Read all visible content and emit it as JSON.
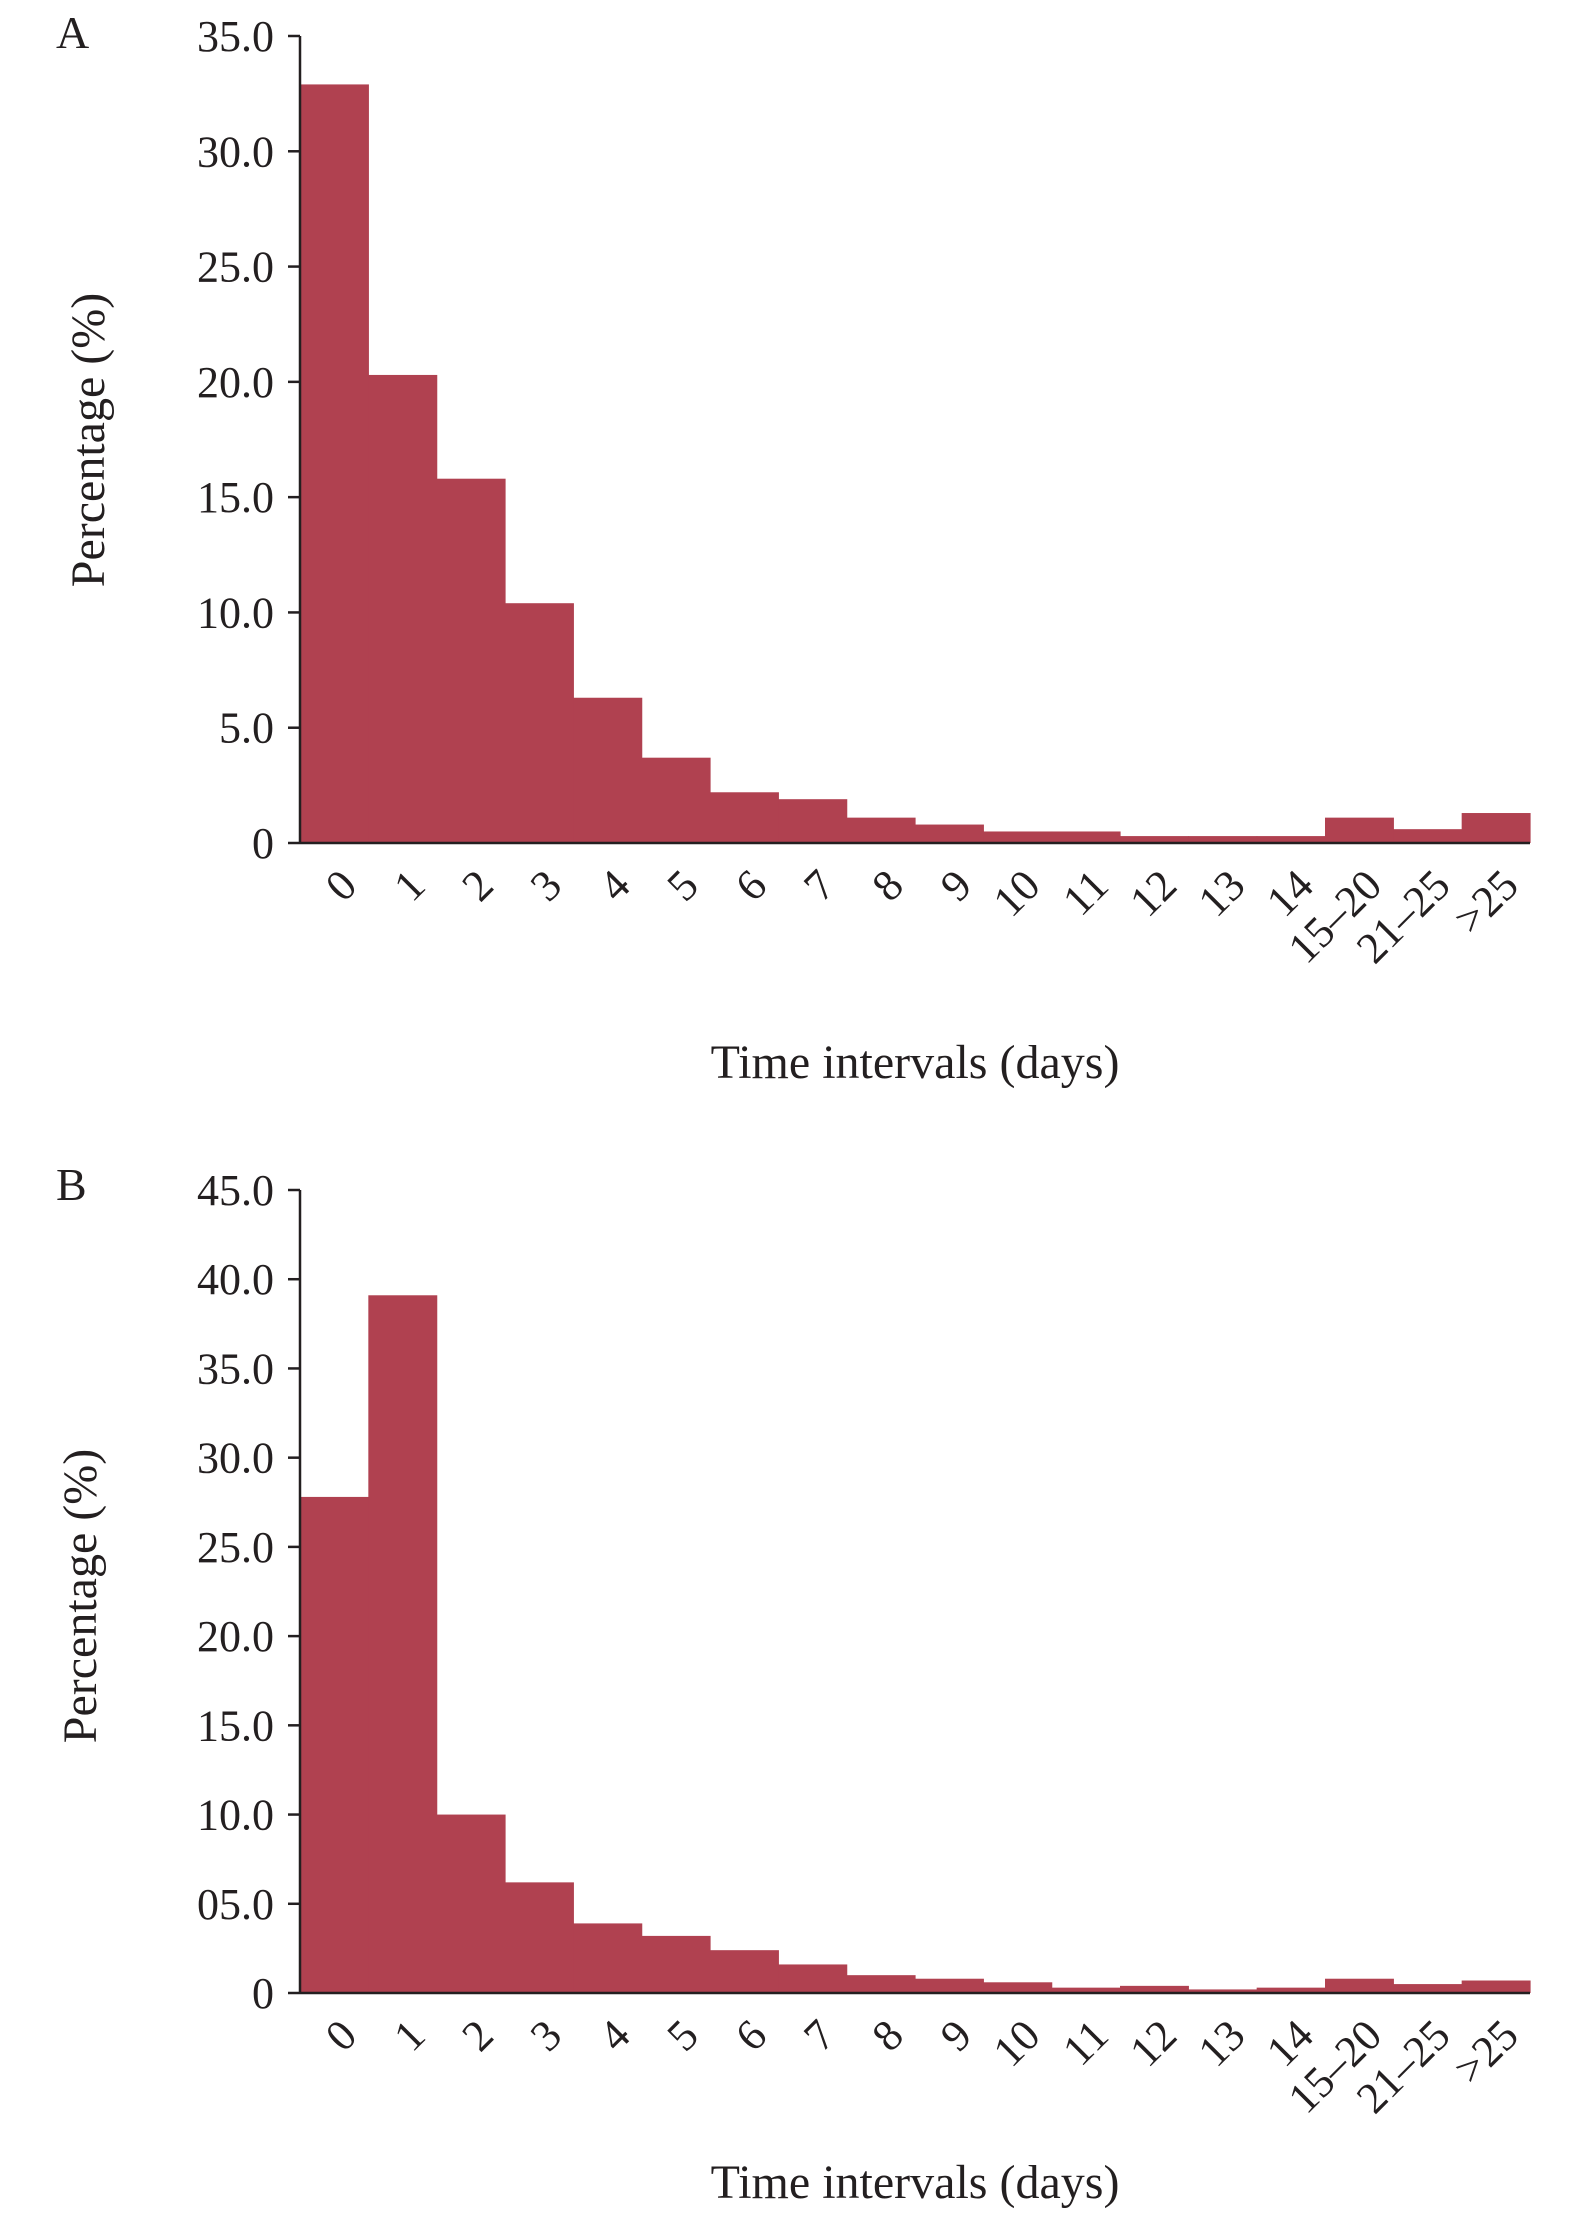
{
  "bar_color": "#b04150",
  "axis_color": "#231f20",
  "chart_data": [
    {
      "type": "bar",
      "panel_label": "A",
      "xlabel": "Time intervals (days)",
      "ylabel": "Percentage (%)",
      "ylim": [
        0,
        35
      ],
      "yticks": [
        0,
        5,
        10,
        15,
        20,
        25,
        30,
        35
      ],
      "ytick_labels": [
        "0",
        "5.0",
        "10.0",
        "15.0",
        "20.0",
        "25.0",
        "30.0",
        "35.0"
      ],
      "categories": [
        "0",
        "1",
        "2",
        "3",
        "4",
        "5",
        "6",
        "7",
        "8",
        "9",
        "10",
        "11",
        "12",
        "13",
        "14",
        "15–20",
        "21–25",
        ">25"
      ],
      "values": [
        32.9,
        20.3,
        15.8,
        10.4,
        6.3,
        3.7,
        2.2,
        1.9,
        1.1,
        0.8,
        0.5,
        0.5,
        0.3,
        0.3,
        0.3,
        1.1,
        0.6,
        1.3
      ]
    },
    {
      "type": "bar",
      "panel_label": "B",
      "xlabel": "Time intervals (days)",
      "ylabel": "Percentage (%)",
      "ylim": [
        0,
        45
      ],
      "yticks": [
        0,
        5,
        10,
        15,
        20,
        25,
        30,
        35,
        40,
        45
      ],
      "ytick_labels": [
        "0",
        "05.0",
        "10.0",
        "15.0",
        "20.0",
        "25.0",
        "30.0",
        "35.0",
        "40.0",
        "45.0"
      ],
      "categories": [
        "0",
        "1",
        "2",
        "3",
        "4",
        "5",
        "6",
        "7",
        "8",
        "9",
        "10",
        "11",
        "12",
        "13",
        "14",
        "15–20",
        "21–25",
        ">25"
      ],
      "values": [
        27.8,
        39.1,
        10.0,
        6.2,
        3.9,
        3.2,
        2.4,
        1.6,
        1.0,
        0.8,
        0.6,
        0.3,
        0.4,
        0.2,
        0.3,
        0.8,
        0.5,
        0.7
      ]
    }
  ]
}
